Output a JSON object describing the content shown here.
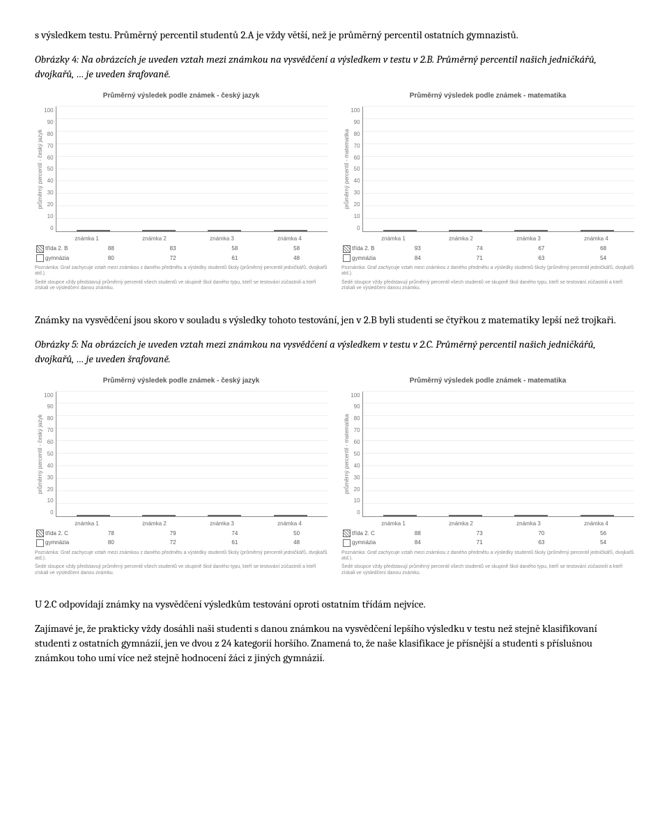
{
  "para1": "s výsledkem testu. Průměrný percentil studentů  2.A je vždy větší, než je průměrný percentil ostatních gymnazistů.",
  "caption4": "Obrázky 4: Na obrázcích je uveden vztah mezi známkou na vysvědčení a výsledkem v testu v 2.B. Průměrný percentil našich jedničkářů, dvojkařů, … je uveden šrafovaně.",
  "para2": "Známky na vysvědčení jsou skoro v souladu s výsledky tohoto testování, jen v 2.B byli studenti se čtyřkou z matematiky lepší než trojkaři.",
  "caption5": "Obrázky 5: Na obrázcích je uveden vztah mezi známkou na vysvědčení a výsledkem v testu v 2.C. Průměrný percentil našich jedničkářů, dvojkařů, … je uveden šrafovaně.",
  "para3": "U 2.C odpovídají známky na vysvědčení výsledkům testování oproti ostatním třídám nejvíce.",
  "para4": "Zajímavé je, že prakticky vždy dosáhli naši studenti s danou známkou na vysvědčení lepšího výsledku v testu než stejně klasifikovaní studenti z ostatních gymnázií, jen ve  dvou z 24 kategorií horšího. Znamená to, že naše klasifikace je přísnější a studenti s příslušnou známkou toho umí více než stejně hodnocení žáci z jiných gymnázií.",
  "chart_common": {
    "categories": [
      "známka 1",
      "známka 2",
      "známka 3",
      "známka 4"
    ],
    "yticks": [
      0,
      10,
      20,
      30,
      40,
      50,
      60,
      70,
      80,
      90,
      100
    ],
    "ymax": 100,
    "footnote1": "Poznámka: Graf zachycuje vztah mezi známkou z daného předmětu a výsledky studentů školy (průměrný percentil jedničkářů, dvojkařů atd.).",
    "footnote2": "Šedé sloupce vždy představují průměrný percentil všech studentů ve skupině škol daného typu, kteří se testování zúčastnili a kteří získali ve výsledčení danou známku."
  },
  "charts": [
    {
      "title": "Průměrný výsledek podle známek - český jazyk",
      "ylabel": "průměrný percentil - český jazyk",
      "series1_label": "třída 2. B",
      "series2_label": "gymnázia",
      "series1": [
        88,
        83,
        58,
        58
      ],
      "series2": [
        80,
        72,
        61,
        48
      ]
    },
    {
      "title": "Průměrný výsledek podle známek - matematika",
      "ylabel": "průměrný percentil - matematika",
      "series1_label": "třída 2. B",
      "series2_label": "gymnázia",
      "series1": [
        93,
        74,
        67,
        68
      ],
      "series2": [
        84,
        71,
        63,
        54
      ]
    },
    {
      "title": "Průměrný výsledek podle známek - český jazyk",
      "ylabel": "průměrný percentil - český jazyk",
      "series1_label": "třída 2. C",
      "series2_label": "gymnázia",
      "series1": [
        78,
        79,
        74,
        50
      ],
      "series2": [
        80,
        72,
        61,
        48
      ]
    },
    {
      "title": "Průměrný výsledek podle známek - matematika",
      "ylabel": "průměrný percentil - matematika",
      "series1_label": "třída 2. C",
      "series2_label": "gymnázia",
      "series1": [
        88,
        73,
        70,
        56
      ],
      "series2": [
        84,
        71,
        63,
        54
      ]
    }
  ]
}
